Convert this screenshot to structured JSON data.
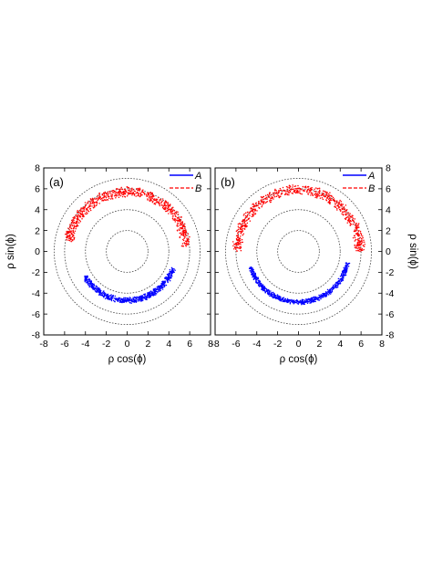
{
  "chart_data": [
    {
      "type": "scatter",
      "panel_label": "(a)",
      "xlabel": "ρ cos(ϕ)",
      "ylabel": "ρ sin(ϕ)",
      "xlim": [
        -8,
        8
      ],
      "ylim": [
        -8,
        8
      ],
      "xticks": [
        "-8",
        "-6",
        "-4",
        "-2",
        "0",
        "2",
        "4",
        "6",
        "8"
      ],
      "yticks": [
        "-8",
        "-6",
        "-4",
        "-2",
        "0",
        "2",
        "4",
        "6",
        "8"
      ],
      "y_axis_side": "left",
      "x_axis_title_shown": true,
      "reference_circles_radius": [
        2,
        4,
        6,
        7
      ],
      "legend": {
        "placement": "top-right",
        "entries": [
          {
            "label": "A",
            "color": "#0000ff",
            "style": "solid"
          },
          {
            "label": "B",
            "color": "#ff0000",
            "style": "dashed"
          }
        ]
      },
      "series": [
        {
          "name": "A",
          "color": "#0000ff",
          "radius_range": [
            4.4,
            5.0
          ],
          "angle_range_deg": [
            210,
            340
          ]
        },
        {
          "name": "B",
          "color": "#ff0000",
          "radius_range": [
            5.2,
            6.2
          ],
          "angle_range_deg": [
            5,
            170
          ]
        }
      ]
    },
    {
      "type": "scatter",
      "panel_label": "(b)",
      "xlabel": "ρ cos(ϕ)",
      "ylabel": "ρ sin(ϕ)",
      "xlim": [
        -8,
        8
      ],
      "ylim": [
        -8,
        8
      ],
      "xticks": [
        "-8",
        "-6",
        "-4",
        "-2",
        "0",
        "2",
        "4",
        "6",
        "8"
      ],
      "yticks": [
        "-8",
        "-6",
        "-4",
        "-2",
        "0",
        "2",
        "4",
        "6",
        "8"
      ],
      "y_axis_side": "right",
      "x_axis_title_shown": true,
      "reference_circles_radius": [
        2,
        4,
        6,
        7
      ],
      "legend": {
        "placement": "top-right",
        "entries": [
          {
            "label": "A",
            "color": "#0000ff",
            "style": "solid"
          },
          {
            "label": "B",
            "color": "#ff0000",
            "style": "dashed"
          }
        ]
      },
      "series": [
        {
          "name": "A",
          "color": "#0000ff",
          "radius_range": [
            4.6,
            5.1
          ],
          "angle_range_deg": [
            198,
            347
          ]
        },
        {
          "name": "B",
          "color": "#ff0000",
          "radius_range": [
            5.4,
            6.4
          ],
          "angle_range_deg": [
            0,
            180
          ]
        }
      ]
    }
  ]
}
